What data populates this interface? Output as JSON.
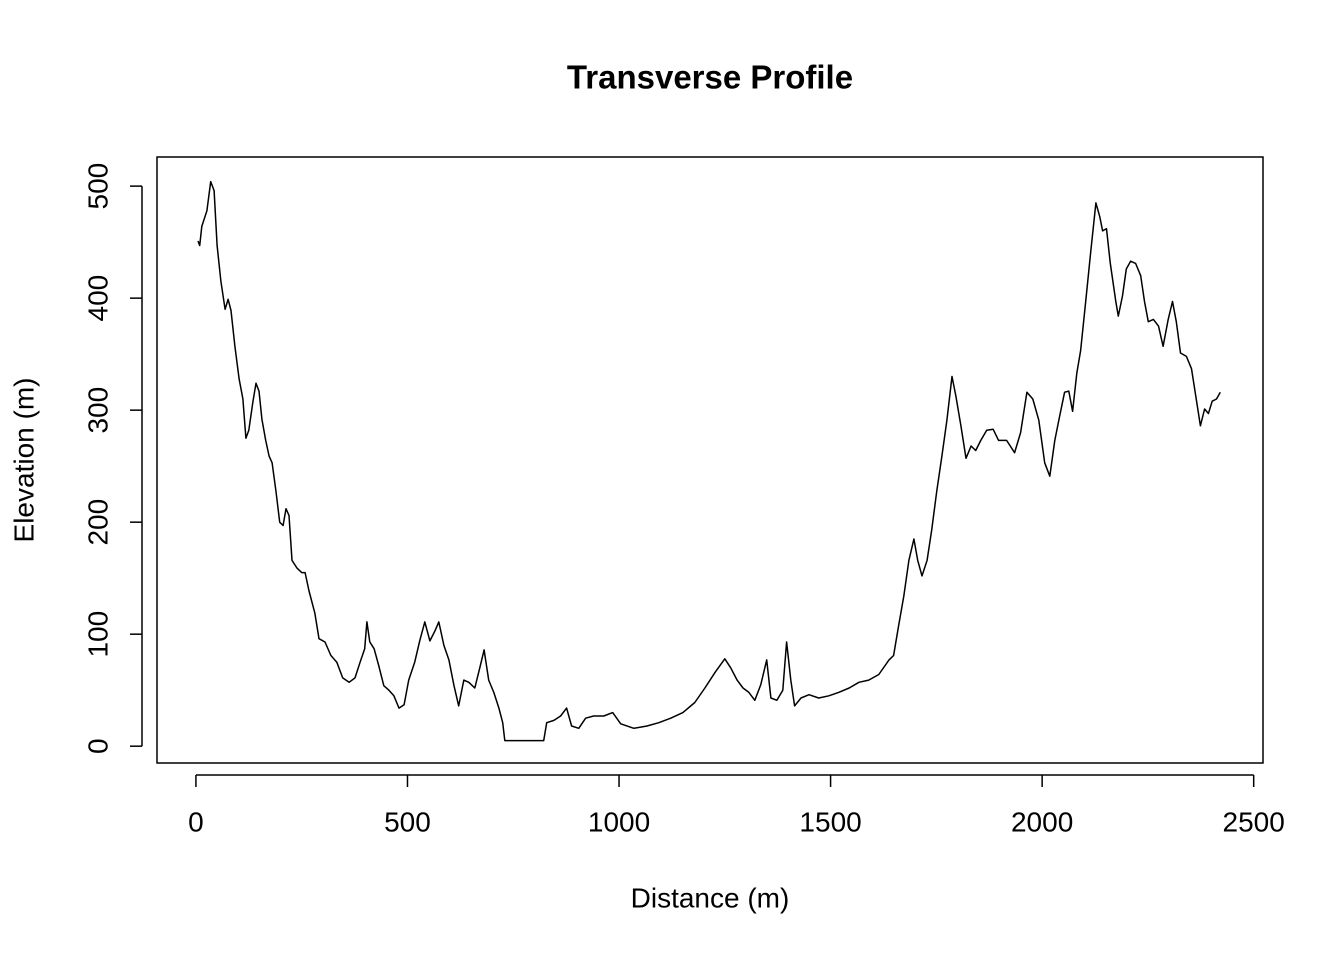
{
  "chart_data": {
    "type": "line",
    "title": "Transverse Profile",
    "x_label": "Distance (m)",
    "y_label": "Elevation (m)",
    "xlim": [
      -92,
      2522
    ],
    "ylim": [
      -15,
      526
    ],
    "xticks": [
      0,
      500,
      1000,
      1500,
      2000,
      2500
    ],
    "yticks": [
      0,
      100,
      200,
      300,
      400,
      500
    ],
    "series": [
      {
        "color": "#000000",
        "x": [
          5,
          9,
          14,
          26,
          35,
          43,
          50,
          59,
          69,
          76,
          83,
          92,
          102,
          111,
          118,
          125,
          135,
          142,
          149,
          156,
          165,
          173,
          180,
          189,
          198,
          206,
          213,
          220,
          227,
          239,
          250,
          258,
          267,
          281,
          291,
          305,
          319,
          333,
          347,
          362,
          376,
          388,
          399,
          404,
          411,
          421,
          432,
          444,
          456,
          468,
          480,
          492,
          503,
          517,
          529,
          541,
          553,
          565,
          574,
          586,
          598,
          610,
          621,
          633,
          645,
          659,
          671,
          681,
          692,
          704,
          716,
          725,
          730,
          822,
          829,
          846,
          862,
          876,
          888,
          905,
          921,
          940,
          964,
          985,
          1004,
          1035,
          1066,
          1094,
          1122,
          1151,
          1179,
          1203,
          1227,
          1250,
          1264,
          1279,
          1293,
          1307,
          1321,
          1335,
          1349,
          1359,
          1373,
          1387,
          1396,
          1406,
          1415,
          1430,
          1449,
          1472,
          1496,
          1519,
          1544,
          1567,
          1590,
          1614,
          1638,
          1649,
          1661,
          1673,
          1685,
          1697,
          1706,
          1716,
          1728,
          1739,
          1751,
          1763,
          1775,
          1787,
          1796,
          1808,
          1820,
          1832,
          1843,
          1855,
          1869,
          1884,
          1897,
          1916,
          1935,
          1949,
          1964,
          1978,
          1992,
          2006,
          2018,
          2030,
          2041,
          2053,
          2063,
          2072,
          2082,
          2091,
          2103,
          2115,
          2127,
          2136,
          2143,
          2152,
          2161,
          2174,
          2180,
          2190,
          2199,
          2209,
          2221,
          2233,
          2242,
          2251,
          2263,
          2275,
          2286,
          2298,
          2308,
          2317,
          2327,
          2341,
          2353,
          2363,
          2374,
          2384,
          2393,
          2402,
          2412,
          2421
        ],
        "values": [
          451,
          447,
          464,
          478,
          504,
          496,
          447,
          415,
          390,
          399,
          389,
          357,
          328,
          310,
          275,
          282,
          308,
          324,
          317,
          292,
          273,
          259,
          253,
          228,
          200,
          197,
          212,
          206,
          166,
          159,
          155,
          155,
          139,
          119,
          96,
          93,
          81,
          75,
          61,
          57,
          61,
          75,
          87,
          111,
          93,
          87,
          72,
          54,
          50,
          45,
          34,
          37,
          59,
          75,
          94,
          111,
          94,
          103,
          111,
          90,
          77,
          54,
          36,
          59,
          57,
          52,
          70,
          86,
          59,
          48,
          34,
          21,
          5,
          5,
          21,
          23,
          27,
          34,
          18,
          16,
          25,
          27,
          27,
          30,
          20,
          16,
          18,
          21,
          25,
          30,
          39,
          52,
          66,
          78,
          70,
          59,
          52,
          48,
          41,
          55,
          77,
          43,
          41,
          50,
          93,
          59,
          36,
          43,
          46,
          43,
          45,
          48,
          52,
          57,
          59,
          64,
          77,
          81,
          108,
          134,
          166,
          185,
          166,
          152,
          166,
          193,
          228,
          259,
          291,
          330,
          313,
          286,
          257,
          268,
          264,
          273,
          282,
          283,
          273,
          273,
          262,
          280,
          316,
          310,
          291,
          253,
          241,
          273,
          294,
          316,
          317,
          299,
          333,
          353,
          397,
          442,
          485,
          473,
          460,
          462,
          431,
          397,
          384,
          402,
          426,
          433,
          431,
          420,
          397,
          379,
          381,
          375,
          357,
          381,
          397,
          379,
          351,
          348,
          337,
          313,
          286,
          301,
          297,
          308,
          310,
          316
        ]
      }
    ]
  }
}
